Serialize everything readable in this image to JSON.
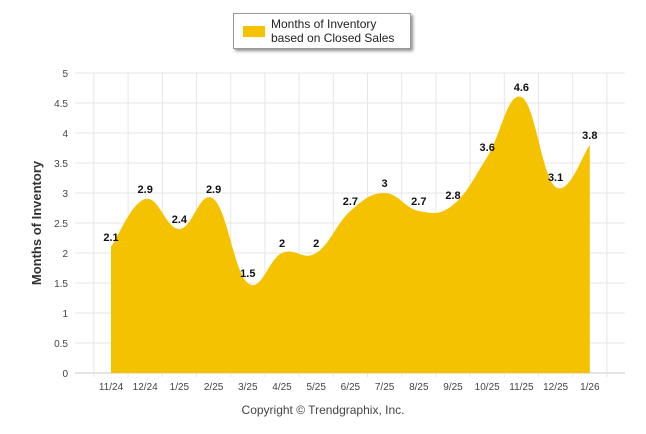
{
  "chart_data": {
    "type": "area",
    "title": "",
    "xlabel": "",
    "ylabel": "Months of Inventory",
    "ylim": [
      0,
      5
    ],
    "yticks": [
      "0",
      "0.5",
      "1",
      "1.5",
      "2",
      "2.5",
      "3",
      "3.5",
      "4",
      "4.5",
      "5"
    ],
    "categories": [
      "11/24",
      "12/24",
      "1/25",
      "2/25",
      "3/25",
      "4/25",
      "5/25",
      "6/25",
      "7/25",
      "8/25",
      "9/25",
      "10/25",
      "11/25",
      "12/25",
      "1/26"
    ],
    "series": [
      {
        "name": "Months of Inventory based on Closed Sales",
        "values": [
          2.1,
          2.9,
          2.4,
          2.9,
          1.5,
          2,
          2,
          2.7,
          3,
          2.7,
          2.8,
          3.6,
          4.6,
          3.1,
          3.8
        ],
        "labels": [
          "2.1",
          "2.9",
          "2.4",
          "2.9",
          "1.5",
          "2",
          "2",
          "2.7",
          "3",
          "2.7",
          "2.8",
          "3.6",
          "4.6",
          "3.1",
          "3.8"
        ],
        "color": "#f5c200"
      }
    ],
    "legend": {
      "label": "Months of Inventory based on Closed Sales",
      "position": "top-center"
    },
    "grid": true
  },
  "footer": {
    "copyright": "Copyright © Trendgraphix, Inc."
  },
  "colors": {
    "fill": "#f5c200",
    "grid": "#e6e6e6",
    "axis": "#c8c8c8"
  }
}
